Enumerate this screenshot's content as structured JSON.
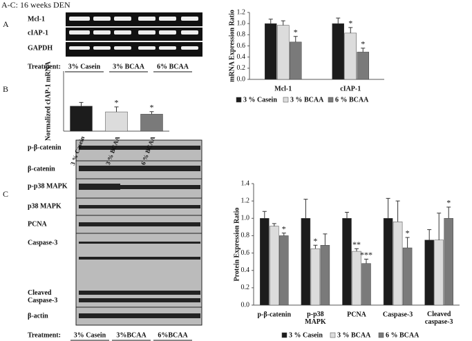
{
  "title": "A-C: 16 weeks DEN",
  "panel_labels": [
    "A",
    "B",
    "C"
  ],
  "blot_a": {
    "rows": [
      "Mcl-1",
      "cIAP-1",
      "GAPDH"
    ],
    "treatment_label": "Treatment:",
    "groups": [
      "3% Casein",
      "3% BCAA",
      "6% BCAA"
    ]
  },
  "blot_c": {
    "rows": [
      "p-β-catenin",
      "β-catenin",
      "p-p38 MAPK",
      "p38 MAPK",
      "PCNA",
      "Caspase-3",
      "Cleaved Caspase-3",
      "β-actin"
    ],
    "treatment_label": "Treatment:",
    "groups": [
      "3% Casein",
      "3%BCAA",
      "6%BCAA"
    ]
  },
  "chart_data": [
    {
      "type": "bar",
      "y_label": "mRNA Expression Ratio",
      "categories": [
        "Mcl-1",
        "cIAP-1"
      ],
      "ylim": [
        0,
        1.2
      ],
      "yticks": [
        {
          "value": 0,
          "label": "0.0"
        },
        {
          "value": 0.2,
          "label": "0.2"
        },
        {
          "value": 0.4,
          "label": "0.4"
        },
        {
          "value": 0.6,
          "label": "0.6"
        },
        {
          "value": 0.8,
          "label": "0.8"
        },
        {
          "value": 1,
          "label": "1.0"
        },
        {
          "value": 1.2,
          "label": "1.2"
        }
      ],
      "series": [
        {
          "name": "3 % Casein",
          "color": "#1c1c1c",
          "values": [
            1.0,
            1.0
          ],
          "errors": [
            0.08,
            0.1
          ],
          "marks": [
            null,
            null
          ]
        },
        {
          "name": "3 % BCAA",
          "color": "#dcdcdc",
          "values": [
            0.97,
            0.83
          ],
          "errors": [
            0.08,
            0.1
          ],
          "marks": [
            null,
            "*"
          ]
        },
        {
          "name": "6 % BCAA",
          "color": "#7a7a7a",
          "values": [
            0.67,
            0.49
          ],
          "errors": [
            0.1,
            0.07
          ],
          "marks": [
            "*",
            "*"
          ]
        }
      ],
      "legend": "bottom"
    },
    {
      "type": "bar",
      "y_label": "Normalized cIAP-1 mRNA",
      "categories": [
        "3 % Casein",
        "3 % BCAA",
        "6 % BCAA"
      ],
      "ylim": [
        0,
        2.4
      ],
      "values": [
        1.0,
        0.77,
        0.68
      ],
      "errors": [
        0.15,
        0.2,
        0.1
      ],
      "colors": [
        "#1c1c1c",
        "#dcdcdc",
        "#7a7a7a"
      ],
      "marks": [
        null,
        "*",
        "*"
      ]
    },
    {
      "type": "bar",
      "y_label": "Protein Expression Ratio",
      "categories": [
        "p-β-catenin",
        "p-p38 MAPK",
        "PCNA",
        "Caspase-3",
        "Cleaved caspase-3"
      ],
      "ylim": [
        0,
        1.4
      ],
      "yticks": [
        {
          "value": 0,
          "label": "0.0"
        },
        {
          "value": 0.2,
          "label": "0.2"
        },
        {
          "value": 0.4,
          "label": "0.4"
        },
        {
          "value": 0.6,
          "label": "0.6"
        },
        {
          "value": 0.8,
          "label": "0.8"
        },
        {
          "value": 1,
          "label": "1.0"
        },
        {
          "value": 1.2,
          "label": "1.2"
        },
        {
          "value": 1.4,
          "label": "1.4"
        }
      ],
      "series": [
        {
          "name": "3 % Casein",
          "color": "#1c1c1c",
          "values": [
            1.0,
            1.0,
            1.0,
            1.0,
            0.75
          ],
          "errors": [
            0.08,
            0.22,
            0.07,
            0.23,
            0.12
          ],
          "marks": [
            null,
            null,
            null,
            null,
            null
          ]
        },
        {
          "name": "3 % BCAA",
          "color": "#dcdcdc",
          "values": [
            0.91,
            0.65,
            0.62,
            0.96,
            0.75
          ],
          "errors": [
            0.03,
            0.04,
            0.03,
            0.24,
            0.31
          ],
          "marks": [
            null,
            "*",
            "**",
            null,
            null
          ]
        },
        {
          "name": "6 % BCAA",
          "color": "#7a7a7a",
          "values": [
            0.8,
            0.69,
            0.48,
            0.66,
            1.0
          ],
          "errors": [
            0.03,
            0.13,
            0.05,
            0.12,
            0.13
          ],
          "marks": [
            "*",
            null,
            "***",
            "*",
            "*"
          ]
        }
      ],
      "legend": "bottom"
    }
  ]
}
